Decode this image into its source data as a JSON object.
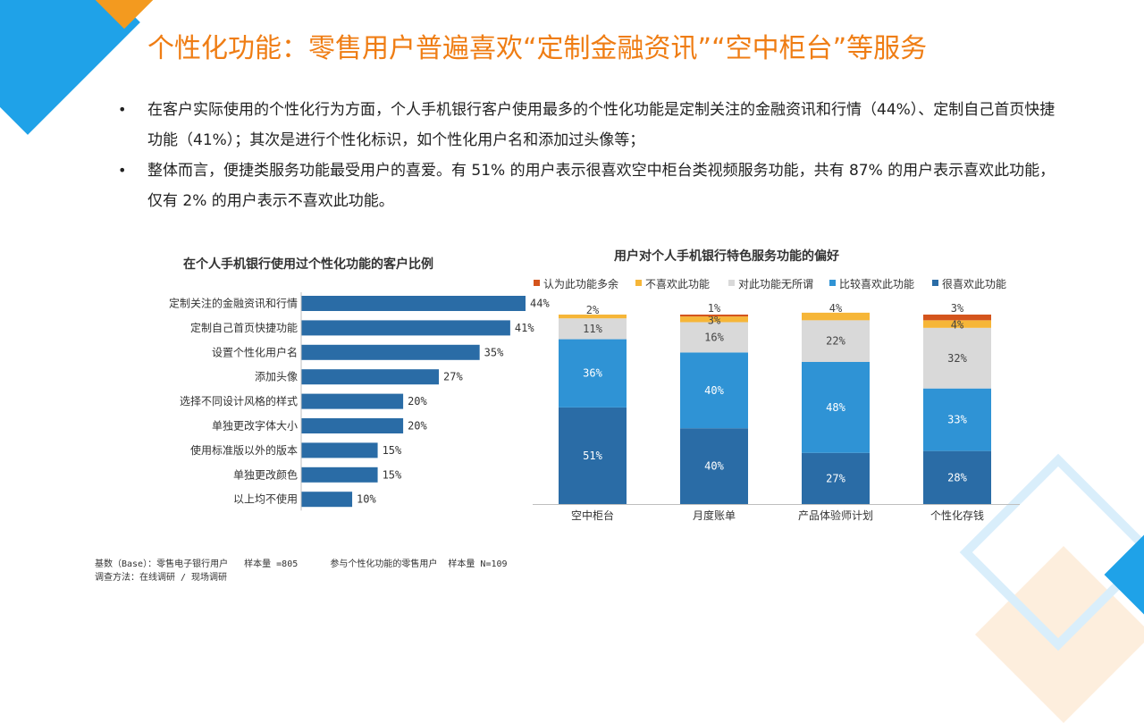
{
  "title": "个性化功能：零售用户普遍喜欢“定制金融资讯”“空中柜台”等服务",
  "bullets": [
    "在客户实际使用的个性化行为方面，个人手机银行客户使用最多的个性化功能是定制关注的金融资讯和行情（44%）、定制自己首页快捷功能（41%）；其次是进行个性化标识，如个性化用户名和添加过头像等；",
    "整体而言，便捷类服务功能最受用户的喜爱。有 51% 的用户表示很喜欢空中柜台类视频服务功能，共有 87% 的用户表示喜欢此功能，仅有 2% 的用户表示不喜欢此功能。"
  ],
  "colors": {
    "title": "#ef7d14",
    "bar": "#2a6ca6",
    "very_like": "#2a6ca6",
    "like": "#2f93d5",
    "indifferent": "#d9d9d9",
    "dislike": "#f6b638",
    "unnecessary": "#d4541c"
  },
  "chart_data": [
    {
      "type": "bar",
      "orientation": "horizontal",
      "title": "在个人手机银行使用过个性化功能的客户比例",
      "categories": [
        "定制关注的金融资讯和行情",
        "定制自己首页快捷功能",
        "设置个性化用户名",
        "添加头像",
        "选择不同设计风格的样式",
        "单独更改字体大小",
        "使用标准版以外的版本",
        "单独更改颜色",
        "以上均不使用"
      ],
      "values": [
        44,
        41,
        35,
        27,
        20,
        20,
        15,
        15,
        10
      ],
      "value_labels": [
        "44%",
        "41%",
        "35%",
        "27%",
        "20%",
        "20%",
        "15%",
        "15%",
        "10%"
      ],
      "xlim": [
        0,
        44
      ],
      "grid": false
    },
    {
      "type": "bar",
      "stacked": true,
      "title": "用户对个人手机银行特色服务功能的偏好",
      "categories": [
        "空中柜台",
        "月度账单",
        "产品体验师计划",
        "个性化存钱"
      ],
      "series": [
        {
          "name": "很喜欢此功能",
          "values": [
            51,
            40,
            27,
            28
          ],
          "color_key": "very_like"
        },
        {
          "name": "比较喜欢此功能",
          "values": [
            36,
            40,
            48,
            33
          ],
          "color_key": "like"
        },
        {
          "name": "对此功能无所谓",
          "values": [
            11,
            16,
            22,
            32
          ],
          "color_key": "indifferent"
        },
        {
          "name": "不喜欢此功能",
          "values": [
            2,
            3,
            4,
            4
          ],
          "color_key": "dislike"
        },
        {
          "name": "认为此功能多余",
          "values": [
            0,
            1,
            0,
            3
          ],
          "color_key": "unnecessary"
        }
      ],
      "legend_order": [
        "认为此功能多余",
        "不喜欢此功能",
        "对此功能无所谓",
        "比较喜欢此功能",
        "很喜欢此功能"
      ],
      "legend_position": "top",
      "ylim": [
        0,
        100
      ],
      "grid": false
    }
  ],
  "footnote": {
    "line1": "基数（Base）：零售电子银行用户   样本量 =805      参与个性化功能的零售用户  样本量 N=109",
    "line2": "调查方法：在线调研 / 现场调研"
  }
}
